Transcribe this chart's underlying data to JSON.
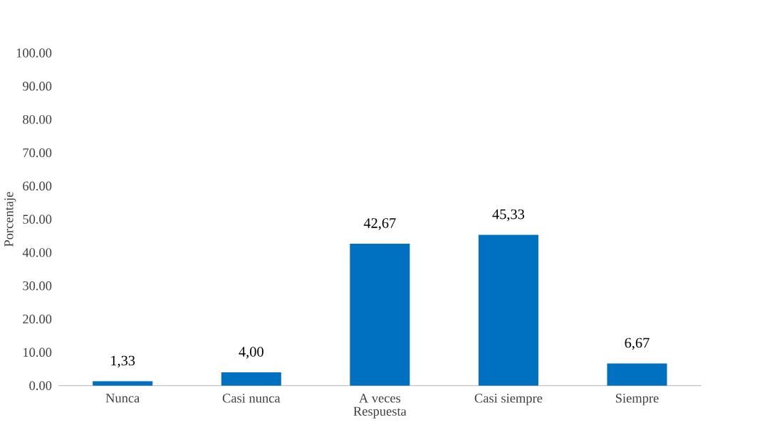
{
  "chart_data": {
    "type": "bar",
    "xlabel": "Respuesta",
    "ylabel": "Porcentaje",
    "categories": [
      "Nunca",
      "Casi nunca",
      "A veces",
      "Casi siempre",
      "Siempre"
    ],
    "values": [
      1.33,
      4.0,
      42.67,
      45.33,
      6.67
    ],
    "value_labels": [
      "1,33",
      "4,00",
      "42,67",
      "45,33",
      "6,67"
    ],
    "color": "#0070c0",
    "ylim": [
      0,
      100
    ],
    "yticks": [
      {
        "value": 0,
        "label": "0.00"
      },
      {
        "value": 10,
        "label": "10.00"
      },
      {
        "value": 20,
        "label": "20.00"
      },
      {
        "value": 30,
        "label": "30.00"
      },
      {
        "value": 40,
        "label": "40.00"
      },
      {
        "value": 50,
        "label": "50.00"
      },
      {
        "value": 60,
        "label": "60.00"
      },
      {
        "value": 70,
        "label": "70.00"
      },
      {
        "value": 80,
        "label": "80.00"
      },
      {
        "value": 90,
        "label": "90.00"
      },
      {
        "value": 100,
        "label": "100.00"
      }
    ]
  }
}
